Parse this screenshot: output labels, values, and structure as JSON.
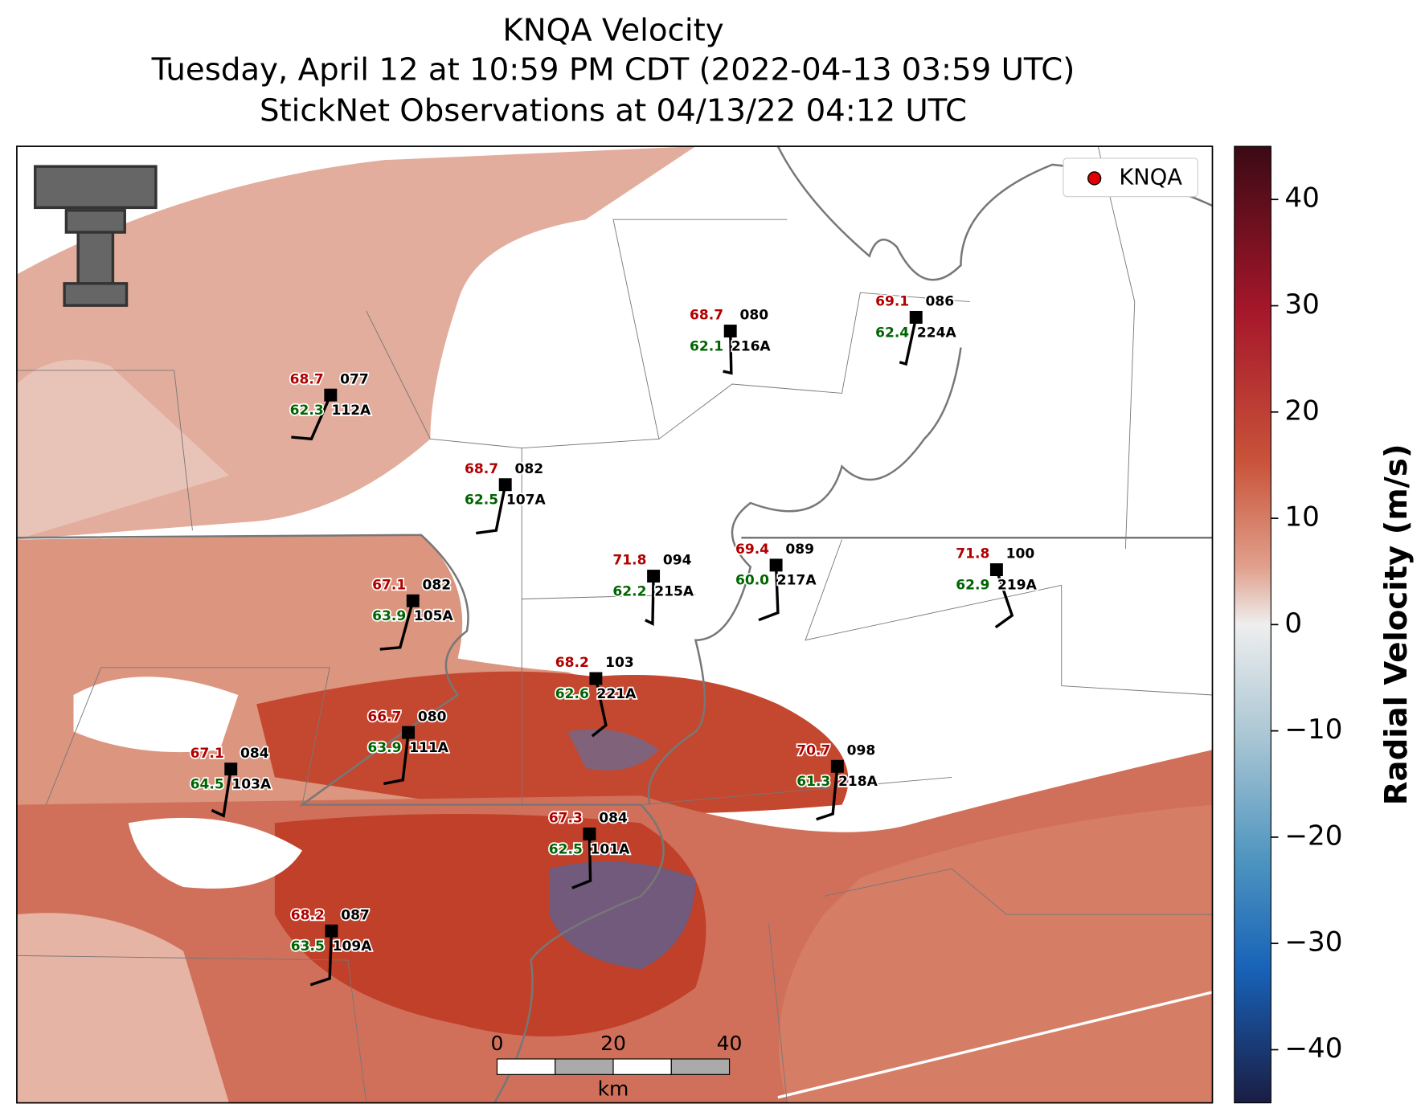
{
  "header": {
    "title": "KNQA Velocity",
    "subtitle": "Tuesday, April 12 at 10:59 PM CDT (2022-04-13 03:59 UTC)",
    "subtitle2": "StickNet Observations at 04/13/22 04:12 UTC"
  },
  "legend": {
    "label": "KNQA",
    "color": "#e00000"
  },
  "colorbar": {
    "label": "Radial Velocity (m/s)",
    "lim": [
      -45,
      45
    ],
    "ticks": [
      40,
      30,
      20,
      10,
      0,
      {
        "value": -10,
        "label": "−10"
      },
      {
        "value": -20,
        "label": "−20"
      },
      {
        "value": -30,
        "label": "−30"
      },
      {
        "value": -40,
        "label": "−40"
      }
    ]
  },
  "scale_bar": {
    "ticks": [
      0,
      20,
      40
    ],
    "unit": "km"
  },
  "stations": [
    {
      "id": "112A",
      "temperature": "68.7",
      "dewpoint": "62.3",
      "code": "077"
    },
    {
      "id": "107A",
      "temperature": "68.7",
      "dewpoint": "62.5",
      "code": "082"
    },
    {
      "id": "216A",
      "temperature": "68.7",
      "dewpoint": "62.1",
      "code": "080"
    },
    {
      "id": "224A",
      "temperature": "69.1",
      "dewpoint": "62.4",
      "code": "086"
    },
    {
      "id": "105A",
      "temperature": "67.1",
      "dewpoint": "63.9",
      "code": "082"
    },
    {
      "id": "215A",
      "temperature": "71.8",
      "dewpoint": "62.2",
      "code": "094"
    },
    {
      "id": "217A",
      "temperature": "69.4",
      "dewpoint": "60.0",
      "code": "089"
    },
    {
      "id": "219A",
      "temperature": "71.8",
      "dewpoint": "62.9",
      "code": "100"
    },
    {
      "id": "221A",
      "temperature": "68.2",
      "dewpoint": "62.6",
      "code": "103"
    },
    {
      "id": "111A",
      "temperature": "66.7",
      "dewpoint": "63.9",
      "code": "080"
    },
    {
      "id": "103A",
      "temperature": "67.1",
      "dewpoint": "64.5",
      "code": "084"
    },
    {
      "id": "218A",
      "temperature": "70.7",
      "dewpoint": "61.3",
      "code": "098"
    },
    {
      "id": "101A",
      "temperature": "67.3",
      "dewpoint": "62.5",
      "code": "084"
    },
    {
      "id": "109A",
      "temperature": "68.2",
      "dewpoint": "63.5",
      "code": "087"
    }
  ]
}
